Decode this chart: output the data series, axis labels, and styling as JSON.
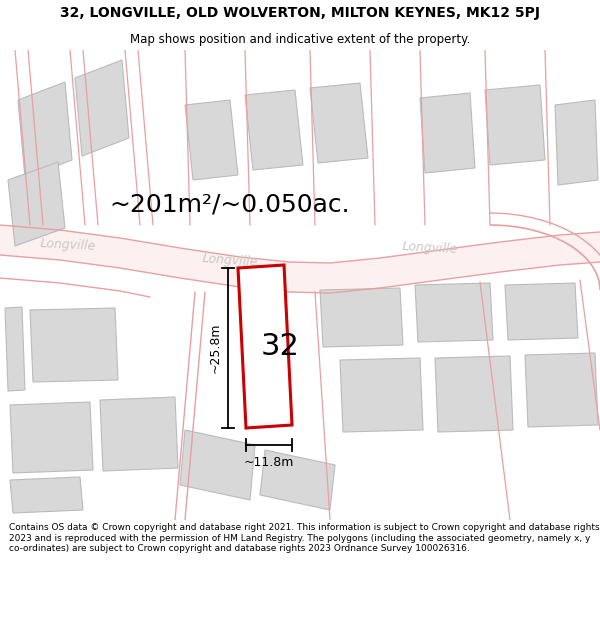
{
  "title": "32, LONGVILLE, OLD WOLVERTON, MILTON KEYNES, MK12 5PJ",
  "subtitle": "Map shows position and indicative extent of the property.",
  "footer": "Contains OS data © Crown copyright and database right 2021. This information is subject to Crown copyright and database rights 2023 and is reproduced with the permission of HM Land Registry. The polygons (including the associated geometry, namely x, y co-ordinates) are subject to Crown copyright and database rights 2023 Ordnance Survey 100026316.",
  "area_label": "~201m²/~0.050ac.",
  "width_label": "~11.8m",
  "height_label": "~25.8m",
  "plot_number": "32",
  "bg_color": "#f7f4f4",
  "road_fill": "#fdf0f0",
  "road_line": "#e8a0a0",
  "building_fc": "#d8d8d8",
  "building_ec": "#bbbbbb",
  "plot_fc": "#ffffff",
  "plot_ec": "#cc0000",
  "dim_color": "#000000",
  "road_label_color": "#c8c8c8",
  "street_name": "Longville",
  "title_fontsize": 10,
  "subtitle_fontsize": 8.5,
  "footer_fontsize": 6.5,
  "area_fontsize": 18,
  "dim_fontsize": 9,
  "plot_num_fontsize": 22,
  "street_fontsize": 9
}
